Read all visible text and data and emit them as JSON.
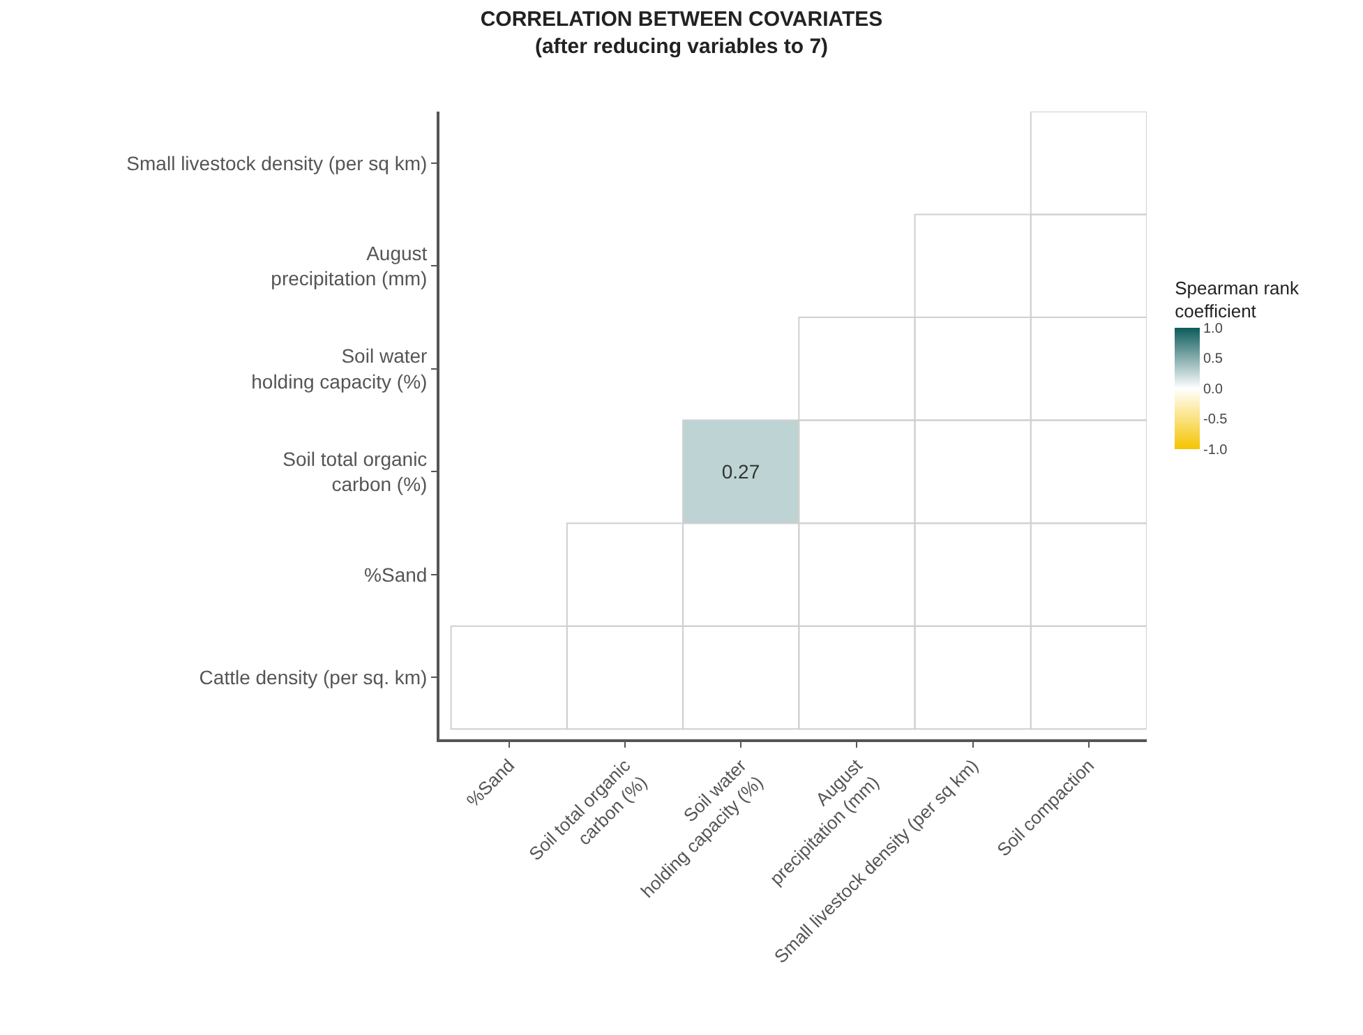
{
  "chart_data": {
    "type": "heatmap",
    "title": "CORRELATION BETWEEN COVARIATES\n(after reducing variables to 7)",
    "clabel": "Spearman rank\ncoefficient",
    "categories": [
      "%Sand",
      "Soil total organic\ncarbon (%)",
      "Soil water\nholding capacity (%)",
      "August\nprecipitation (mm)",
      "Small livestock density (per sq km)",
      "Soil compaction"
    ],
    "y_categories": [
      "Small livestock density (per sq km)",
      "August\nprecipitation (mm)",
      "Soil water\nholding capacity (%)",
      "Soil total organic\ncarbon (%)",
      "%Sand",
      "Cattle density (per sq. km)"
    ],
    "cells": [
      [
        null,
        null,
        null,
        null,
        null,
        0
      ],
      [
        null,
        null,
        null,
        null,
        0,
        0
      ],
      [
        null,
        null,
        null,
        0,
        0,
        0
      ],
      [
        null,
        null,
        0.27,
        0,
        0,
        0
      ],
      [
        null,
        0,
        0,
        0,
        0,
        0
      ],
      [
        0,
        0,
        0,
        0,
        0,
        0
      ]
    ],
    "cell_labels": [
      [
        null,
        null,
        null,
        null,
        null,
        null
      ],
      [
        null,
        null,
        null,
        null,
        null,
        null
      ],
      [
        null,
        null,
        null,
        null,
        null,
        null
      ],
      [
        null,
        null,
        "0.27",
        null,
        null,
        null
      ],
      [
        null,
        null,
        null,
        null,
        null,
        null
      ],
      [
        null,
        null,
        null,
        null,
        null,
        null
      ]
    ],
    "clim": [
      -1,
      1
    ],
    "cticks": [
      {
        "value": 1,
        "label": "1.0"
      },
      0.5,
      {
        "value": 0,
        "label": "0.0"
      },
      -0.5,
      {
        "value": -1,
        "label": "-1.0"
      }
    ]
  }
}
